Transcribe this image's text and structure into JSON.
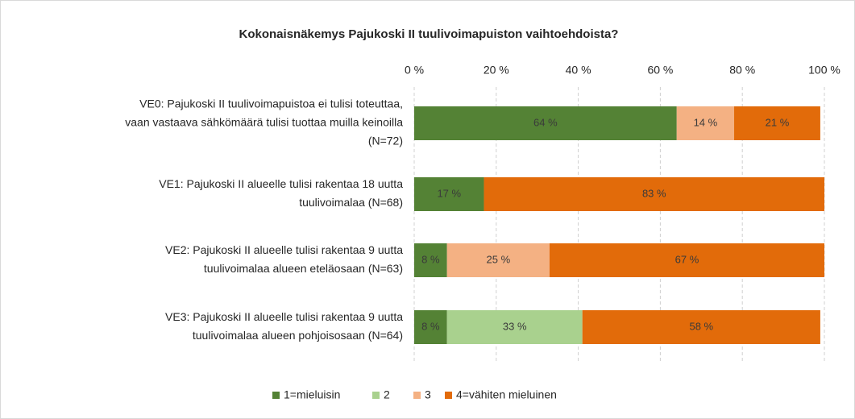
{
  "chart_data": {
    "type": "stacked_bar_horizontal",
    "title": "Kokonaisnäkemys Pajukoski II tuulivoimapuiston vaihtoehdoista?",
    "categories": [
      [
        "VE0: Pajukoski II tuulivoimapuistoa ei tulisi toteuttaa,",
        "vaan vastaava sähkömäärä tulisi tuottaa muilla keinoilla",
        "(N=72)"
      ],
      [
        "VE1: Pajukoski II  alueelle tulisi rakentaa 18 uutta",
        "tuulivoimalaa (N=68)"
      ],
      [
        "VE2: Pajukoski II alueelle tulisi rakentaa 9 uutta",
        "tuulivoimalaa alueen eteläosaan (N=63)"
      ],
      [
        "VE3: Pajukoski II alueelle tulisi rakentaa 9 uutta",
        "tuulivoimalaa alueen pohjoisosaan (N=64)"
      ]
    ],
    "series": [
      {
        "name": "1=mieluisin",
        "color": "#548235",
        "values": [
          64,
          17,
          8,
          8
        ],
        "value_labels": [
          "64 %",
          "17 %",
          "8 %",
          "8 %"
        ]
      },
      {
        "name": "2",
        "color": "#a9d18e",
        "values": [
          0,
          0,
          0,
          33
        ],
        "value_labels": [
          null,
          null,
          null,
          "33 %"
        ]
      },
      {
        "name": "3",
        "color": "#f4b183",
        "values": [
          14,
          0,
          25,
          0
        ],
        "value_labels": [
          "14 %",
          null,
          "25 %",
          null
        ]
      },
      {
        "name": "4=vähiten mieluinen",
        "color": "#e26b0a",
        "values": [
          21,
          83,
          67,
          58
        ],
        "value_labels": [
          "21 %",
          "83 %",
          "67 %",
          "58 %"
        ]
      }
    ],
    "xlim": [
      0,
      100
    ],
    "xticks": [
      {
        "value": 0,
        "label": "0 %"
      },
      {
        "value": 20,
        "label": "20 %"
      },
      {
        "value": 40,
        "label": "40 %"
      },
      {
        "value": 60,
        "label": "60 %"
      },
      {
        "value": 80,
        "label": "80 %"
      },
      {
        "value": 100,
        "label": "100 %"
      }
    ],
    "grid": true,
    "legend": "bottom"
  }
}
